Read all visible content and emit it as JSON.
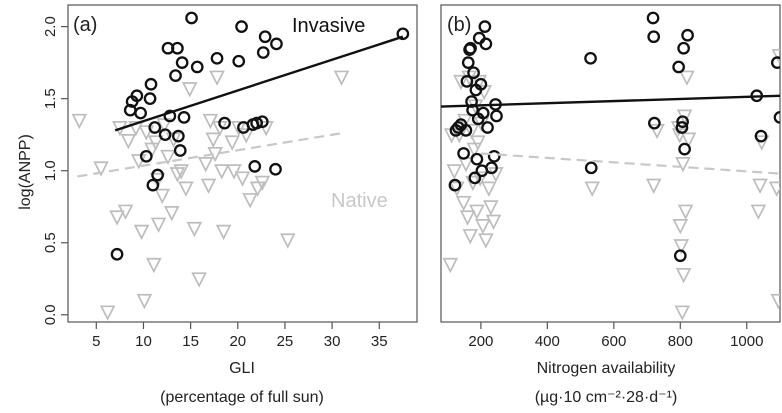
{
  "chart_data": [
    {
      "type": "scatter",
      "panel_label": "(a)",
      "xlabel": "GLI",
      "xlabel_sub": "(percentage of full sun)",
      "ylabel": "log(ANPP)",
      "xlim": [
        2,
        39
      ],
      "ylim": [
        -0.05,
        2.15
      ],
      "xticks": [
        5,
        10,
        15,
        20,
        25,
        30,
        35
      ],
      "yticks": [
        0.0,
        0.5,
        1.0,
        1.5,
        2.0
      ],
      "grid": false,
      "series": [
        {
          "name": "Invasive",
          "marker": "circle",
          "color": "#111111",
          "points": [
            [
              7.2,
              0.42
            ],
            [
              8.6,
              1.42
            ],
            [
              8.8,
              1.48
            ],
            [
              9.3,
              1.52
            ],
            [
              9.7,
              1.4
            ],
            [
              10.3,
              1.1
            ],
            [
              10.7,
              1.5
            ],
            [
              10.8,
              1.6
            ],
            [
              11.0,
              0.9
            ],
            [
              11.2,
              1.3
            ],
            [
              11.5,
              0.97
            ],
            [
              12.3,
              1.25
            ],
            [
              12.6,
              1.85
            ],
            [
              12.8,
              1.38
            ],
            [
              13.4,
              1.66
            ],
            [
              13.6,
              1.85
            ],
            [
              13.7,
              1.24
            ],
            [
              13.9,
              1.14
            ],
            [
              14.1,
              1.75
            ],
            [
              14.3,
              1.37
            ],
            [
              15.1,
              2.06
            ],
            [
              15.7,
              1.72
            ],
            [
              17.8,
              1.78
            ],
            [
              18.6,
              1.33
            ],
            [
              20.1,
              1.76
            ],
            [
              20.4,
              2.0
            ],
            [
              20.6,
              1.3
            ],
            [
              21.6,
              1.32
            ],
            [
              21.8,
              1.03
            ],
            [
              22.0,
              1.33
            ],
            [
              22.6,
              1.34
            ],
            [
              22.7,
              1.82
            ],
            [
              22.9,
              1.93
            ],
            [
              24.1,
              1.88
            ],
            [
              24.0,
              1.01
            ],
            [
              37.5,
              1.95
            ]
          ],
          "fit": {
            "x": [
              7,
              37.5
            ],
            "y": [
              1.28,
              1.93
            ],
            "style": "solid"
          }
        },
        {
          "name": "Native",
          "marker": "triangle-down",
          "color": "#bdbdbd",
          "points": [
            [
              3.2,
              1.35
            ],
            [
              5.5,
              1.02
            ],
            [
              6.2,
              0.02
            ],
            [
              7.2,
              0.68
            ],
            [
              7.5,
              1.3
            ],
            [
              8.1,
              0.72
            ],
            [
              8.4,
              1.21
            ],
            [
              9.2,
              1.3
            ],
            [
              9.5,
              1.07
            ],
            [
              9.8,
              0.58
            ],
            [
              10.1,
              0.1
            ],
            [
              10.3,
              1.27
            ],
            [
              10.9,
              1.15
            ],
            [
              11.1,
              0.35
            ],
            [
              11.3,
              1.2
            ],
            [
              11.5,
              0.94
            ],
            [
              11.6,
              0.63
            ],
            [
              12.0,
              0.83
            ],
            [
              12.2,
              1.32
            ],
            [
              12.6,
              1.1
            ],
            [
              13.0,
              0.71
            ],
            [
              13.2,
              1.22
            ],
            [
              13.6,
              0.98
            ],
            [
              14.0,
              1.0
            ],
            [
              14.5,
              0.88
            ],
            [
              14.9,
              1.57
            ],
            [
              15.4,
              0.6
            ],
            [
              15.9,
              0.25
            ],
            [
              16.6,
              1.05
            ],
            [
              16.9,
              0.9
            ],
            [
              17.1,
              1.35
            ],
            [
              17.4,
              1.22
            ],
            [
              17.6,
              1.12
            ],
            [
              17.8,
              1.65
            ],
            [
              18.1,
              1.3
            ],
            [
              18.3,
              1.0
            ],
            [
              18.5,
              0.58
            ],
            [
              19.4,
              1.2
            ],
            [
              19.6,
              1.0
            ],
            [
              20.1,
              1.3
            ],
            [
              20.5,
              0.95
            ],
            [
              20.9,
              1.25
            ],
            [
              21.3,
              0.8
            ],
            [
              22.1,
              0.88
            ],
            [
              22.6,
              0.92
            ],
            [
              23.0,
              1.3
            ],
            [
              25.3,
              0.52
            ],
            [
              31.0,
              1.65
            ]
          ],
          "fit": {
            "x": [
              3,
              31
            ],
            "y": [
              0.96,
              1.26
            ],
            "style": "dashed"
          }
        }
      ],
      "annotations": [
        {
          "text": "Invasive",
          "color": "#111111"
        },
        {
          "text": "Native",
          "color": "#c8c8c8"
        }
      ]
    },
    {
      "type": "scatter",
      "panel_label": "(b)",
      "xlabel": "Nitrogen availability",
      "xlabel_sub": "(µg·10 cm⁻²·28·d⁻¹)",
      "ylabel": "",
      "xlim": [
        80,
        1100
      ],
      "ylim": [
        -0.05,
        2.15
      ],
      "xticks": [
        200,
        400,
        600,
        800,
        1000
      ],
      "yticks": [
        0.0,
        0.5,
        1.0,
        1.5,
        2.0
      ],
      "grid": false,
      "series": [
        {
          "name": "Invasive",
          "marker": "circle",
          "color": "#111111",
          "points": [
            [
              122,
              0.9
            ],
            [
              125,
              1.28
            ],
            [
              132,
              1.3
            ],
            [
              140,
              1.32
            ],
            [
              148,
              1.12
            ],
            [
              155,
              1.28
            ],
            [
              158,
              1.62
            ],
            [
              162,
              1.75
            ],
            [
              166,
              1.84
            ],
            [
              169,
              1.85
            ],
            [
              172,
              1.48
            ],
            [
              175,
              1.42
            ],
            [
              178,
              1.68
            ],
            [
              182,
              0.95
            ],
            [
              185,
              1.56
            ],
            [
              188,
              1.08
            ],
            [
              192,
              1.36
            ],
            [
              195,
              1.92
            ],
            [
              200,
              1.6
            ],
            [
              203,
              1.0
            ],
            [
              207,
              1.4
            ],
            [
              212,
              2.0
            ],
            [
              215,
              1.88
            ],
            [
              220,
              1.3
            ],
            [
              232,
              1.02
            ],
            [
              240,
              1.1
            ],
            [
              244,
              1.46
            ],
            [
              247,
              1.38
            ],
            [
              530,
              1.78
            ],
            [
              532,
              1.02
            ],
            [
              718,
              2.06
            ],
            [
              720,
              1.93
            ],
            [
              722,
              1.33
            ],
            [
              795,
              1.72
            ],
            [
              800,
              0.41
            ],
            [
              805,
              1.3
            ],
            [
              807,
              1.34
            ],
            [
              810,
              1.85
            ],
            [
              813,
              1.15
            ],
            [
              822,
              1.94
            ],
            [
              1030,
              1.52
            ],
            [
              1043,
              1.24
            ],
            [
              1092,
              1.75
            ],
            [
              1100,
              1.37
            ]
          ],
          "fit": {
            "x": [
              80,
              1100
            ],
            "y": [
              1.445,
              1.52
            ],
            "style": "solid"
          }
        },
        {
          "name": "Native",
          "marker": "triangle-down",
          "color": "#bdbdbd",
          "points": [
            [
              108,
              0.35
            ],
            [
              112,
              1.25
            ],
            [
              120,
              1.0
            ],
            [
              128,
              0.88
            ],
            [
              135,
              1.25
            ],
            [
              140,
              1.62
            ],
            [
              148,
              0.78
            ],
            [
              152,
              1.35
            ],
            [
              155,
              1.05
            ],
            [
              160,
              0.68
            ],
            [
              165,
              1.65
            ],
            [
              168,
              0.55
            ],
            [
              172,
              1.28
            ],
            [
              176,
              0.92
            ],
            [
              180,
              1.15
            ],
            [
              184,
              1.45
            ],
            [
              188,
              0.72
            ],
            [
              191,
              1.2
            ],
            [
              195,
              1.62
            ],
            [
              198,
              0.95
            ],
            [
              202,
              1.33
            ],
            [
              206,
              0.62
            ],
            [
              210,
              1.55
            ],
            [
              215,
              0.52
            ],
            [
              224,
              0.88
            ],
            [
              230,
              0.75
            ],
            [
              238,
              0.65
            ],
            [
              245,
              0.98
            ],
            [
              535,
              0.88
            ],
            [
              720,
              0.9
            ],
            [
              730,
              1.28
            ],
            [
              795,
              1.3
            ],
            [
              798,
              1.25
            ],
            [
              800,
              0.62
            ],
            [
              803,
              0.48
            ],
            [
              806,
              0.02
            ],
            [
              808,
              1.05
            ],
            [
              810,
              0.28
            ],
            [
              813,
              1.38
            ],
            [
              816,
              0.72
            ],
            [
              820,
              1.65
            ],
            [
              825,
              1.22
            ],
            [
              1035,
              0.72
            ],
            [
              1040,
              0.9
            ],
            [
              1045,
              1.2
            ],
            [
              1090,
              0.88
            ],
            [
              1095,
              0.1
            ],
            [
              1098,
              1.8
            ]
          ],
          "fit": {
            "x": [
              200,
              1100
            ],
            "y": [
              1.12,
              0.98
            ],
            "style": "dashed"
          }
        }
      ],
      "annotations": []
    }
  ]
}
